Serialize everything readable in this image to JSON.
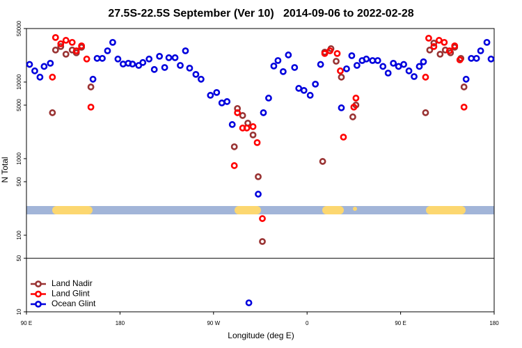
{
  "chart_data": {
    "type": "scatter",
    "title": "27.5S-22.5S September (Ver 10)   2014-09-06 to 2022-02-28",
    "xlabel": "Longitude (deg E)",
    "ylabel": "N Total",
    "xlim": [
      90,
      540
    ],
    "xticks": [
      {
        "value": 90,
        "label": "90 E"
      },
      {
        "value": 180,
        "label": "180"
      },
      {
        "value": 270,
        "label": "90 W"
      },
      {
        "value": 360,
        "label": "0"
      },
      {
        "value": 450,
        "label": "90 E"
      },
      {
        "value": 540,
        "label": "180"
      }
    ],
    "ylim": [
      10,
      50000
    ],
    "log_y": true,
    "yticks": [
      10,
      50,
      100,
      500,
      1000,
      5000,
      10000,
      50000
    ],
    "hline": 50,
    "legend": "lower left",
    "series": [
      {
        "name": "Land Nadir",
        "color": "#993333",
        "x": [
          115,
          118,
          123,
          128,
          134,
          138,
          143,
          152,
          290,
          293,
          298,
          303,
          308,
          313,
          317,
          375,
          377,
          383,
          388,
          393,
          404,
          407,
          474,
          478,
          482,
          488,
          493,
          498,
          502,
          508,
          511
        ],
        "values": [
          3980,
          26200,
          29100,
          23100,
          26200,
          24100,
          28500,
          8630,
          1430,
          4520,
          3660,
          2910,
          2040,
          581,
          82.8,
          920,
          24600,
          27300,
          18700,
          11600,
          3510,
          5010,
          3980,
          26200,
          32300,
          23100,
          26200,
          24100,
          28500,
          20400,
          8630
        ]
      },
      {
        "name": "Land Glint",
        "color": "#ff0000",
        "x": [
          115,
          118,
          123,
          128,
          134,
          138,
          143,
          148,
          152,
          290,
          293,
          298,
          302,
          308,
          312,
          317,
          377,
          382,
          389,
          392,
          395,
          405,
          407,
          474,
          477,
          482,
          487,
          492,
          497,
          502,
          507,
          511
        ],
        "values": [
          11600,
          38200,
          31600,
          35100,
          33000,
          25600,
          29700,
          20000,
          4710,
          811,
          3980,
          2510,
          2510,
          2620,
          1620,
          165,
          23600,
          25600,
          23600,
          14000,
          1910,
          4710,
          6180,
          11600,
          37400,
          29100,
          35100,
          33000,
          25600,
          29700,
          19500,
          4710
        ]
      },
      {
        "name": "Ocean Glint",
        "color": "#0000dd",
        "x": [
          93,
          98,
          103,
          107,
          113,
          154,
          158,
          163,
          168,
          173,
          178,
          183,
          188,
          192,
          198,
          202,
          208,
          213,
          218,
          223,
          227,
          233,
          238,
          243,
          247,
          253,
          258,
          267,
          273,
          278,
          283,
          288,
          304,
          313,
          318,
          323,
          328,
          332,
          337,
          342,
          348,
          352,
          357,
          363,
          368,
          373,
          393,
          398,
          403,
          408,
          413,
          417,
          423,
          428,
          433,
          438,
          443,
          448,
          453,
          458,
          463,
          468,
          472,
          513,
          518,
          523,
          527,
          533,
          537
        ],
        "values": [
          17000,
          14000,
          11600,
          16000,
          17600,
          10900,
          20400,
          20400,
          25600,
          33000,
          20000,
          17200,
          17600,
          17200,
          16500,
          18000,
          20000,
          14600,
          21700,
          15500,
          20800,
          20800,
          16500,
          25600,
          15200,
          12600,
          10900,
          6720,
          7310,
          5340,
          5560,
          2790,
          13.1,
          344,
          3980,
          6180,
          16200,
          19100,
          13700,
          22600,
          15500,
          8280,
          7780,
          6720,
          9400,
          17000,
          4610,
          14900,
          22100,
          16500,
          19100,
          20000,
          19100,
          19100,
          16000,
          13100,
          17600,
          16000,
          17000,
          14000,
          11800,
          16000,
          18400,
          10900,
          20400,
          20400,
          25600,
          33000,
          20000
        ]
      }
    ]
  }
}
